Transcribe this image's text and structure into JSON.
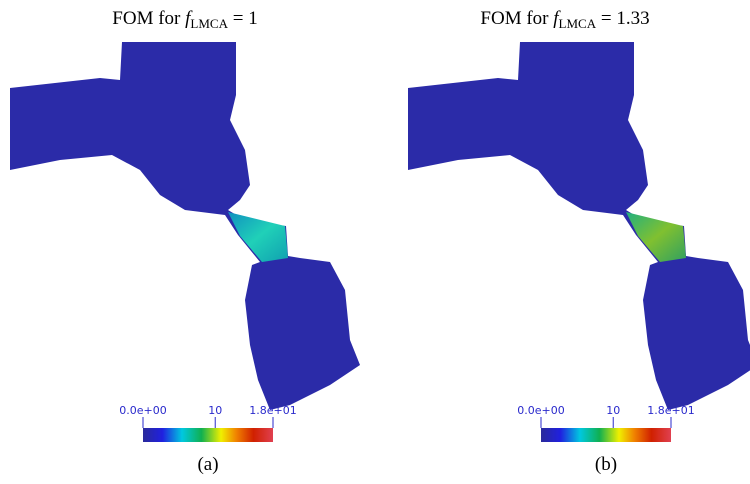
{
  "panels": [
    {
      "title": {
        "prefix": "FOM for ",
        "var": "f",
        "sub": "LMCA",
        "rest": " = 1"
      },
      "colorbar": {
        "range": [
          0,
          18
        ],
        "ticks": [
          {
            "value": 0,
            "label": "0.0e+00"
          },
          10,
          {
            "value": 18,
            "label": "1.8e+01"
          }
        ]
      },
      "caption": "(a)"
    },
    {
      "title": {
        "prefix": "FOM for ",
        "var": "f",
        "sub": "LMCA",
        "rest": " = 1.33"
      },
      "colorbar": {
        "range": [
          0,
          18
        ],
        "ticks": [
          {
            "value": 0,
            "label": "0.0e+00"
          },
          10,
          {
            "value": 18,
            "label": "1.8e+01"
          }
        ]
      },
      "caption": "(b)"
    }
  ]
}
